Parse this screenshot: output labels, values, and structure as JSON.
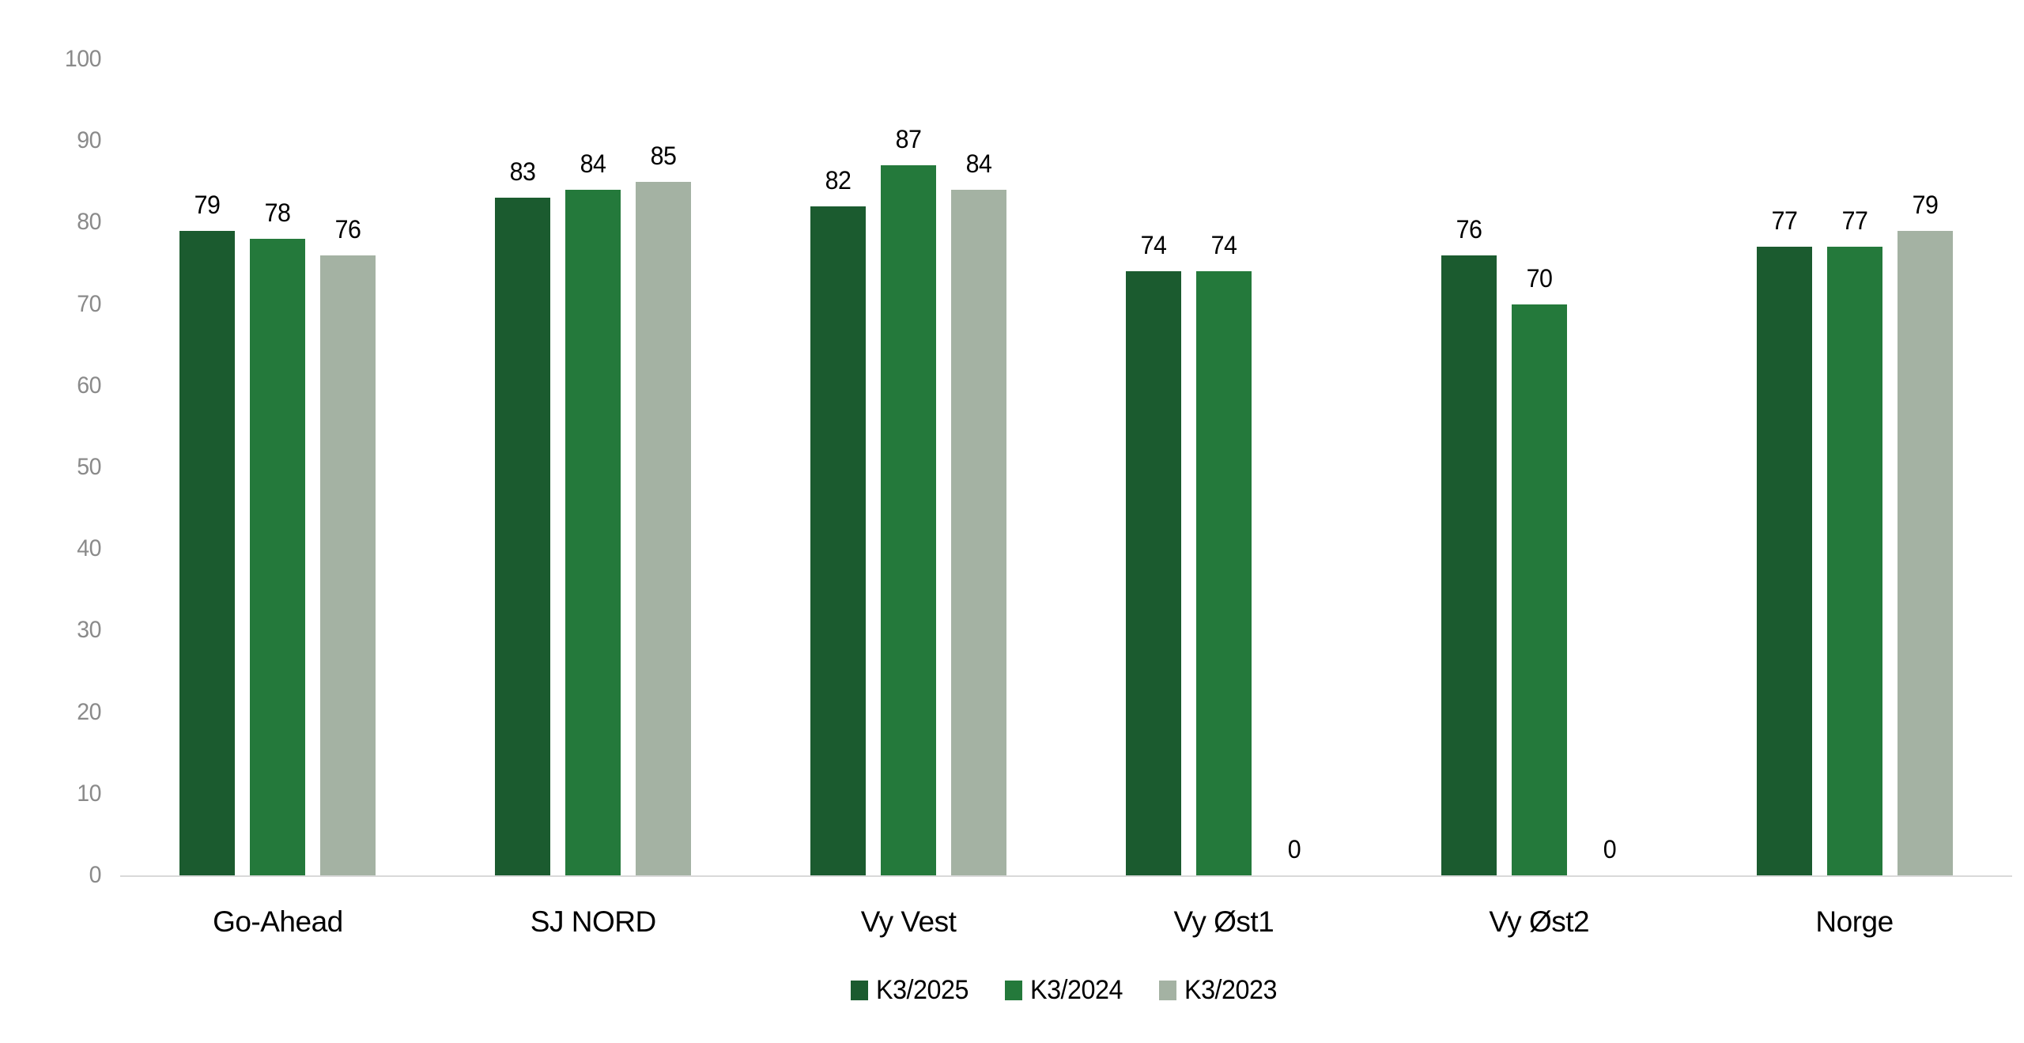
{
  "chart_data": {
    "type": "bar",
    "title": "",
    "xlabel": "",
    "ylabel": "",
    "categories": [
      "Go-Ahead",
      "SJ NORD",
      "Vy Vest",
      "Vy Øst1",
      "Vy Øst2",
      "Norge"
    ],
    "series": [
      {
        "name": "K3/2025",
        "color": "#1b5b2f",
        "values": [
          79,
          83,
          82,
          74,
          76,
          77
        ]
      },
      {
        "name": "K3/2024",
        "color": "#24793b",
        "values": [
          78,
          84,
          87,
          74,
          70,
          77
        ]
      },
      {
        "name": "K3/2023",
        "color": "#a4b2a3",
        "values": [
          76,
          85,
          84,
          0,
          0,
          79
        ]
      }
    ],
    "ylim": [
      0,
      100
    ],
    "yticks": [
      0,
      10,
      20,
      30,
      40,
      50,
      60,
      70,
      80,
      90,
      100
    ],
    "grid": false,
    "data_labels": true,
    "legend_position": "bottom",
    "colors": {
      "axis_tick_label": "#8a8a8a",
      "axis_line": "#d9d9d9",
      "data_label": "#000000",
      "background": "#ffffff"
    }
  }
}
